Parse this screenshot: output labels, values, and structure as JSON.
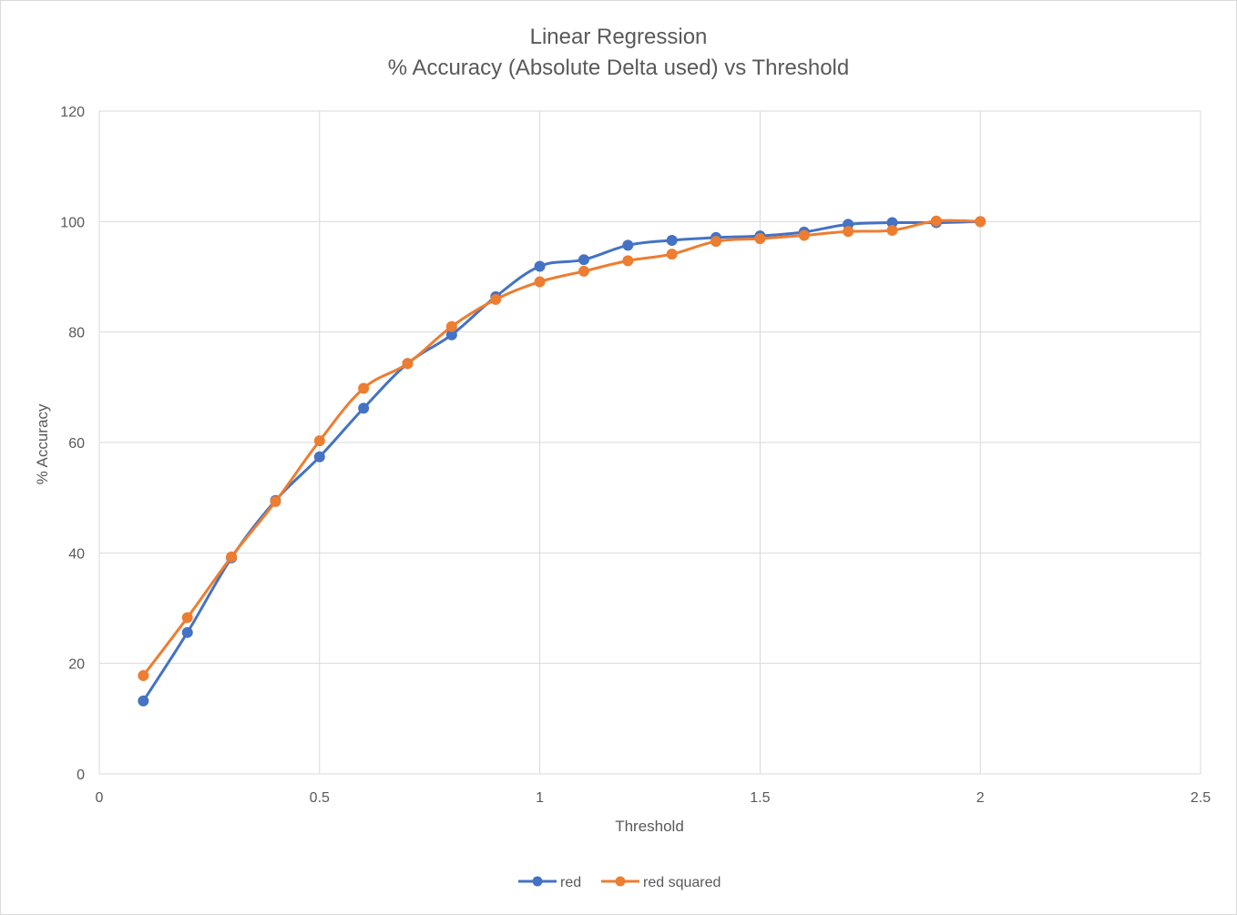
{
  "chart_data": {
    "type": "line",
    "title": [
      "Linear Regression",
      "% Accuracy (Absolute Delta used) vs Threshold"
    ],
    "xlabel": "Threshold",
    "ylabel": "% Accuracy",
    "xlim": [
      0,
      2.5
    ],
    "ylim": [
      0,
      120
    ],
    "x_ticks": [
      0,
      0.5,
      1,
      1.5,
      2,
      2.5
    ],
    "x_tick_labels": [
      "0",
      "0.5",
      "1",
      "1.5",
      "2",
      "2.5"
    ],
    "y_ticks": [
      0,
      20,
      40,
      60,
      80,
      100,
      120
    ],
    "y_tick_labels": [
      "0",
      "20",
      "40",
      "60",
      "80",
      "100",
      "120"
    ],
    "grid": true,
    "legend_position": "bottom",
    "x": [
      0.1,
      0.2,
      0.3,
      0.4,
      0.5,
      0.6,
      0.7,
      0.8,
      0.9,
      1.0,
      1.1,
      1.2,
      1.3,
      1.4,
      1.5,
      1.6,
      1.7,
      1.8,
      1.9,
      2.0
    ],
    "series": [
      {
        "name": "red",
        "color": "#4472c4",
        "values": [
          13.2,
          25.6,
          39.1,
          49.5,
          57.4,
          66.2,
          74.3,
          79.5,
          86.4,
          91.9,
          93.1,
          95.7,
          96.6,
          97.1,
          97.4,
          98.1,
          99.5,
          99.8,
          99.8,
          100
        ]
      },
      {
        "name": "red squared",
        "color": "#ed7d31",
        "values": [
          17.8,
          28.3,
          39.3,
          49.3,
          60.3,
          69.8,
          74.3,
          81.0,
          85.9,
          89.1,
          91.0,
          92.9,
          94.1,
          96.4,
          96.9,
          97.5,
          98.2,
          98.4,
          100.1,
          100
        ]
      }
    ]
  }
}
